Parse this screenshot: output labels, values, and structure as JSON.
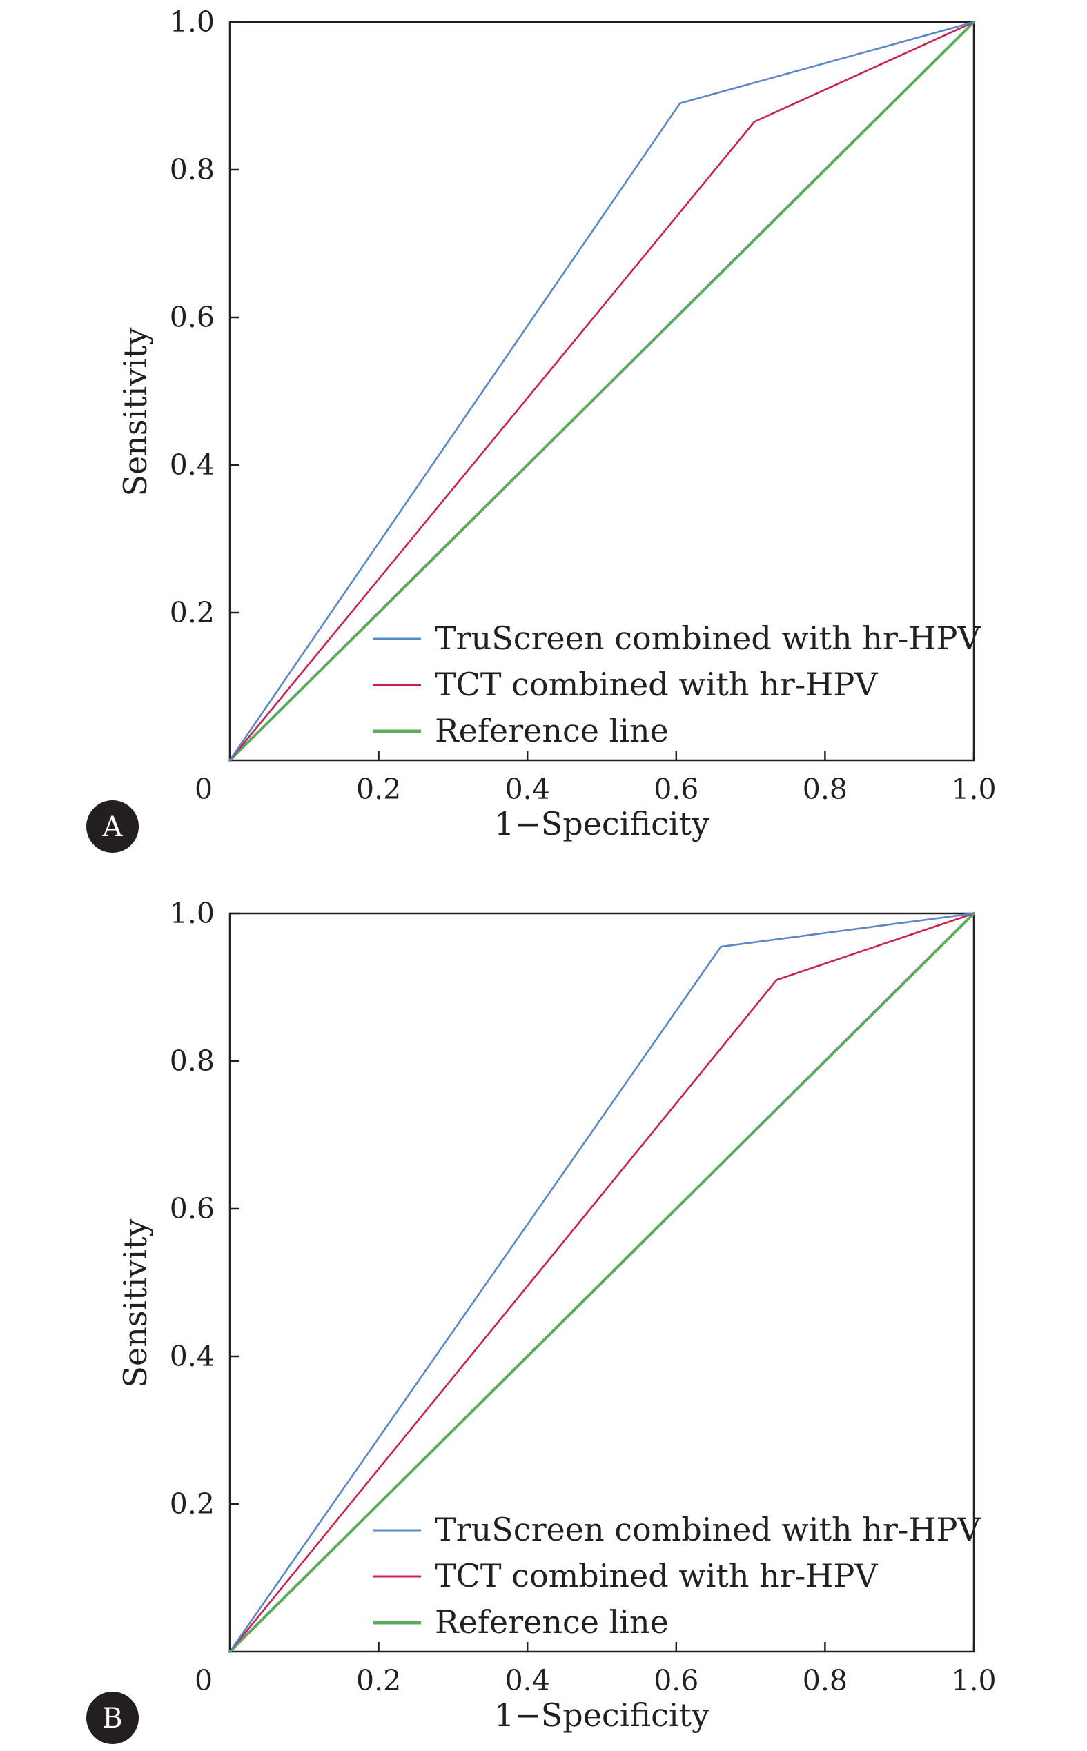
{
  "chart_data": [
    {
      "panel_label": "A",
      "type": "line",
      "xlabel": "1−Specificity",
      "ylabel": "Sensitivity",
      "xlim": [
        0,
        1.0
      ],
      "ylim": [
        0,
        1.0
      ],
      "origin_label": "0",
      "x_tick_labels": [
        "0.2",
        "0.4",
        "0.6",
        "0.8",
        "1.0"
      ],
      "y_tick_labels": [
        "0.2",
        "0.4",
        "0.6",
        "0.8",
        "1.0"
      ],
      "x_ticks": [
        0.2,
        0.4,
        0.6,
        0.8,
        1.0
      ],
      "y_ticks": [
        0.2,
        0.4,
        0.6,
        0.8,
        1.0
      ],
      "grid": false,
      "legend_position": "bottom-right",
      "series": [
        {
          "name": "TruScreen combined with hr-HPV",
          "color": "#5b87c5",
          "x": [
            0,
            0.605,
            1.0
          ],
          "y": [
            0,
            0.89,
            1.0
          ]
        },
        {
          "name": "TCT combined with hr-HPV",
          "color": "#c8234f",
          "x": [
            0,
            0.705,
            1.0
          ],
          "y": [
            0,
            0.865,
            1.0
          ]
        },
        {
          "name": "Reference line",
          "color": "#5aab5e",
          "x": [
            0,
            1.0
          ],
          "y": [
            0,
            1.0
          ]
        }
      ]
    },
    {
      "panel_label": "B",
      "type": "line",
      "xlabel": "1−Specificity",
      "ylabel": "Sensitivity",
      "xlim": [
        0,
        1.0
      ],
      "ylim": [
        0,
        1.0
      ],
      "origin_label": "0",
      "x_tick_labels": [
        "0.2",
        "0.4",
        "0.6",
        "0.8",
        "1.0"
      ],
      "y_tick_labels": [
        "0.2",
        "0.4",
        "0.6",
        "0.8",
        "1.0"
      ],
      "x_ticks": [
        0.2,
        0.4,
        0.6,
        0.8,
        1.0
      ],
      "y_ticks": [
        0.2,
        0.4,
        0.6,
        0.8,
        1.0
      ],
      "grid": false,
      "legend_position": "bottom-right",
      "series": [
        {
          "name": "TruScreen combined with hr-HPV",
          "color": "#5b87c5",
          "x": [
            0,
            0.66,
            1.0
          ],
          "y": [
            0,
            0.955,
            1.0
          ]
        },
        {
          "name": "TCT combined with hr-HPV",
          "color": "#c8234f",
          "x": [
            0,
            0.735,
            1.0
          ],
          "y": [
            0,
            0.91,
            1.0
          ]
        },
        {
          "name": "Reference line",
          "color": "#5aab5e",
          "x": [
            0,
            1.0
          ],
          "y": [
            0,
            1.0
          ]
        }
      ]
    }
  ]
}
